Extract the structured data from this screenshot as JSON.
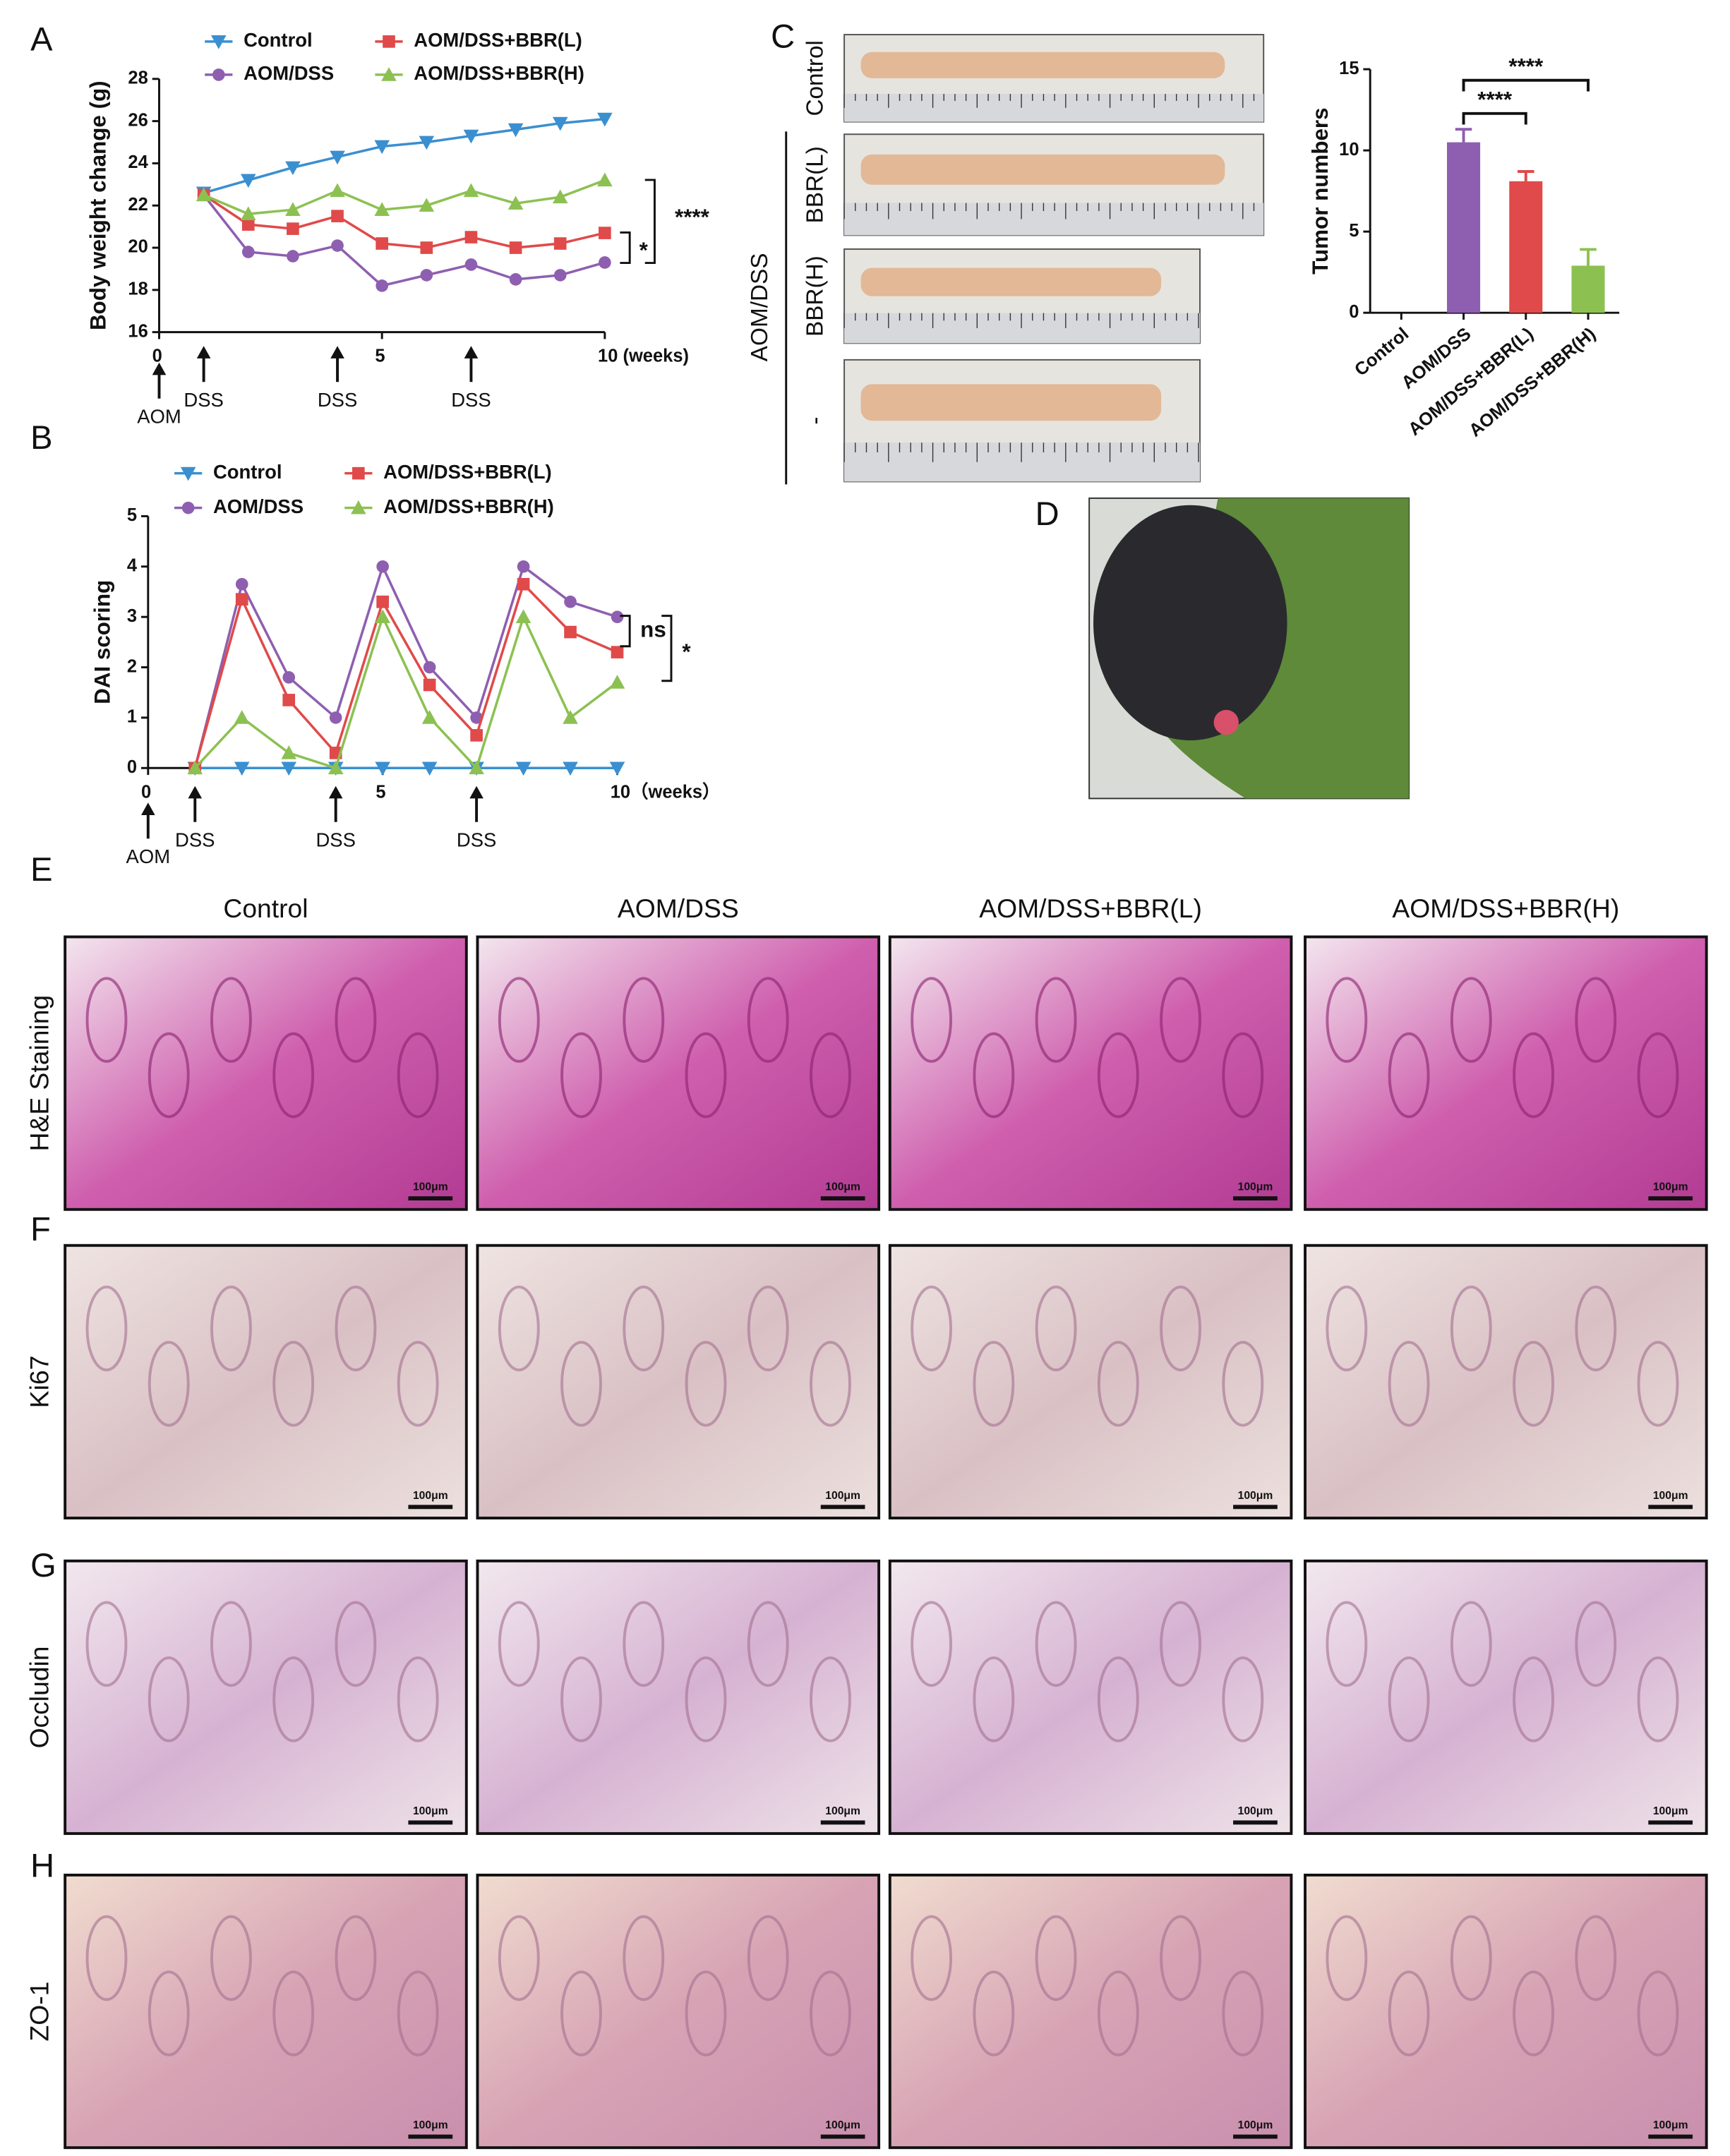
{
  "panel_labels": [
    "A",
    "B",
    "C",
    "D",
    "E",
    "F",
    "G",
    "H"
  ],
  "chart_data": [
    {
      "type": "line",
      "ylabel": "Body weight change (g)",
      "x": [
        1,
        2,
        3,
        4,
        5,
        6,
        7,
        8,
        9,
        10
      ],
      "series": [
        {
          "name": "Control",
          "color": "#3a8fd0",
          "marker": "triangle-down",
          "values": [
            22.6,
            23.2,
            23.8,
            24.3,
            24.8,
            25.0,
            25.3,
            25.6,
            25.9,
            26.1
          ]
        },
        {
          "name": "AOM/DSS",
          "color": "#8e5fb0",
          "marker": "circle",
          "values": [
            22.5,
            19.8,
            19.6,
            20.1,
            18.2,
            18.7,
            19.2,
            18.5,
            18.7,
            19.3
          ]
        },
        {
          "name": "AOM/DSS+BBR(L)",
          "color": "#e04a4a",
          "marker": "square",
          "values": [
            22.5,
            21.1,
            20.9,
            21.5,
            20.2,
            20.0,
            20.5,
            20.0,
            20.2,
            20.7
          ]
        },
        {
          "name": "AOM/DSS+BBR(H)",
          "color": "#8cc152",
          "marker": "triangle",
          "values": [
            22.5,
            21.6,
            21.8,
            22.7,
            21.8,
            22.0,
            22.7,
            22.1,
            22.4,
            23.2
          ]
        }
      ],
      "xlim": [
        0,
        10
      ],
      "ylim": [
        16,
        28
      ],
      "xticks": [
        0,
        5,
        {
          "value": 10,
          "label": "10 (weeks)"
        }
      ],
      "yticks": [
        16,
        18,
        20,
        22,
        24,
        26,
        28
      ],
      "annotations": [
        "****",
        "*"
      ],
      "markers": [
        {
          "x": 0,
          "label": "AOM"
        },
        {
          "x": 1,
          "label": "DSS"
        },
        {
          "x": 4,
          "label": "DSS"
        },
        {
          "x": 7,
          "label": "DSS"
        }
      ]
    },
    {
      "type": "line",
      "ylabel": "DAI scoring",
      "x": [
        1,
        2,
        3,
        4,
        5,
        6,
        7,
        8,
        9,
        10
      ],
      "series": [
        {
          "name": "Control",
          "color": "#3a8fd0",
          "marker": "triangle-down",
          "values": [
            0,
            0,
            0,
            0,
            0,
            0,
            0,
            0,
            0,
            0
          ]
        },
        {
          "name": "AOM/DSS",
          "color": "#8e5fb0",
          "marker": "circle",
          "values": [
            0,
            3.65,
            1.8,
            1.0,
            4.0,
            2.0,
            1.0,
            4.0,
            3.3,
            3.0
          ]
        },
        {
          "name": "AOM/DSS+BBR(L)",
          "color": "#e04a4a",
          "marker": "square",
          "values": [
            0,
            3.35,
            1.35,
            0.3,
            3.3,
            1.65,
            0.65,
            3.65,
            2.7,
            2.3
          ]
        },
        {
          "name": "AOM/DSS+BBR(H)",
          "color": "#8cc152",
          "marker": "triangle",
          "values": [
            0,
            1.0,
            0.3,
            0,
            3.0,
            1.0,
            0,
            3.0,
            1.0,
            1.7
          ]
        }
      ],
      "xlim": [
        0,
        10
      ],
      "ylim": [
        0,
        5
      ],
      "xticks": [
        0,
        5,
        {
          "value": 10,
          "label": "10（weeks）"
        }
      ],
      "yticks": [
        0,
        1,
        2,
        3,
        4,
        5
      ],
      "annotations": [
        "ns",
        "*"
      ],
      "markers": [
        {
          "x": 0,
          "label": "AOM"
        },
        {
          "x": 1,
          "label": "DSS"
        },
        {
          "x": 4,
          "label": "DSS"
        },
        {
          "x": 7,
          "label": "DSS"
        }
      ]
    },
    {
      "type": "bar",
      "ylabel": "Tumor numbers",
      "categories": [
        "Control",
        "AOM/DSS",
        "AOM/DSS+BBR(L)",
        "AOM/DSS+BBR(H)"
      ],
      "values": [
        0,
        10.5,
        8.1,
        2.9
      ],
      "errors": [
        0,
        0.8,
        0.6,
        1.0
      ],
      "colors": [
        "#8e5fb0",
        "#8e5fb0",
        "#e04a4a",
        "#8cc152"
      ],
      "ylim": [
        0,
        15
      ],
      "yticks": [
        0,
        5,
        10,
        15
      ],
      "annotations": [
        "****",
        "****"
      ]
    }
  ],
  "colon_photos": {
    "group_label": "AOM/DSS",
    "labels": [
      "Control",
      "BBR(L)",
      "BBR(H)",
      "-"
    ]
  },
  "histology": {
    "columns": [
      "Control",
      "AOM/DSS",
      "AOM/DSS+BBR(L)",
      "AOM/DSS+BBR(H)"
    ],
    "rows": [
      "H&E Staining",
      "Ki67",
      "Occludin",
      "ZO-1"
    ],
    "scale_bar": "100μm"
  }
}
